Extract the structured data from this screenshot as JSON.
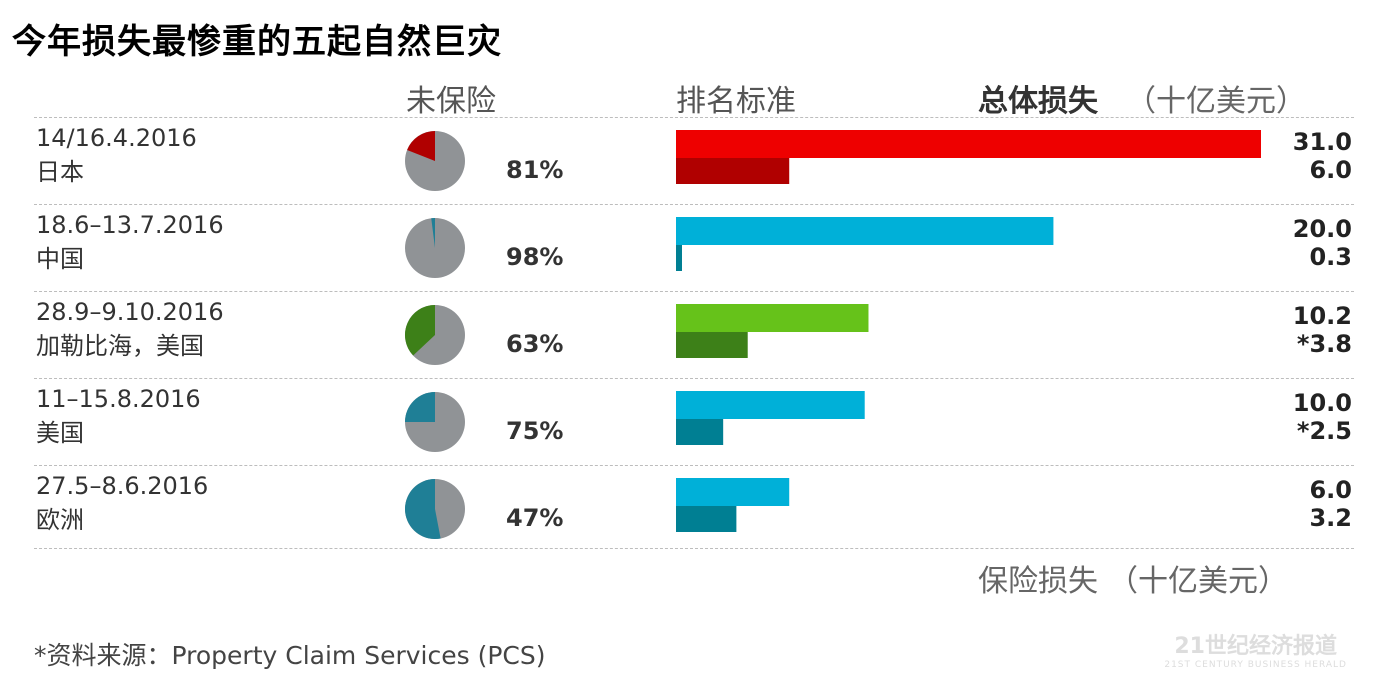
{
  "title": "今年损失最惨重的五起自然巨灾",
  "headers": {
    "uninsured": "未保险",
    "ranking": "排名标准",
    "total_loss": "总体损失",
    "unit": "（十亿美元）"
  },
  "footer": {
    "insured_loss": "保险损失",
    "unit": "（十亿美元）",
    "source": "*资料来源：Property Claim Services (PCS)"
  },
  "watermark": {
    "main": "21世纪经济报道",
    "sub": "21ST CENTURY BUSINESS HERALD"
  },
  "rows": [
    {
      "date": "14/16.4.2016",
      "region": "日本",
      "uninsured_pct": "81%",
      "total_label": "31.0",
      "insured_label": "6.0"
    },
    {
      "date": "18.6–13.7.2016",
      "region": "中国",
      "uninsured_pct": "98%",
      "total_label": "20.0",
      "insured_label": "0.3"
    },
    {
      "date": "28.9–9.10.2016",
      "region": "加勒比海，美国",
      "uninsured_pct": "63%",
      "total_label": "10.2",
      "insured_label": "*3.8"
    },
    {
      "date": "11–15.8.2016",
      "region": "美国",
      "uninsured_pct": "75%",
      "total_label": "10.0",
      "insured_label": "*2.5"
    },
    {
      "date": "27.5–8.6.2016",
      "region": "欧洲",
      "uninsured_pct": "47%",
      "total_label": "6.0",
      "insured_label": "3.2"
    }
  ],
  "chart_data": {
    "type": "bar",
    "orientation": "horizontal",
    "categories": [
      "日本",
      "中国",
      "加勒比海，美国",
      "美国",
      "欧洲"
    ],
    "series": [
      {
        "name": "总体损失",
        "values": [
          31.0,
          20.0,
          10.2,
          10.0,
          6.0
        ]
      },
      {
        "name": "保险损失",
        "values": [
          6.0,
          0.3,
          3.8,
          2.5,
          3.2
        ]
      }
    ],
    "uninsured_share": [
      0.81,
      0.98,
      0.63,
      0.75,
      0.47
    ],
    "xlim": [
      0,
      31
    ],
    "grid": false,
    "colors": {
      "total": [
        "#ee0000",
        "#00b0d8",
        "#66c21a",
        "#00b0d8",
        "#00b0d8"
      ],
      "insured": [
        "#b00000",
        "#007f93",
        "#3d8018",
        "#007f93",
        "#007f93"
      ],
      "pie_insured": [
        "#b00000",
        "#1f7f96",
        "#3d8018",
        "#1f7f96",
        "#1f7f96"
      ],
      "pie_uninsured": "#909396"
    }
  }
}
